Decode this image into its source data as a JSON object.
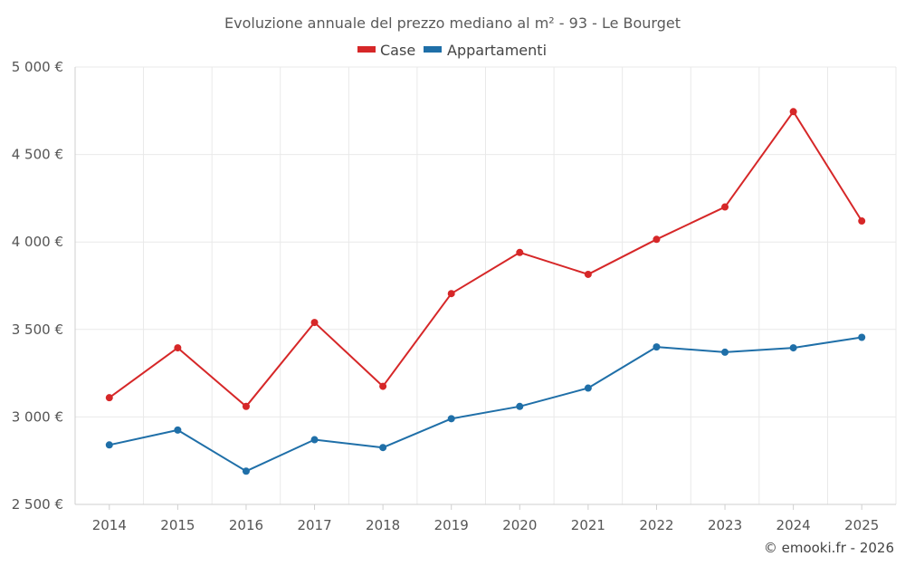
{
  "chart_data": {
    "type": "line",
    "title": "Evoluzione annuale del prezzo mediano al m² - 93 - Le Bourget",
    "categories": [
      "2014",
      "2015",
      "2016",
      "2017",
      "2018",
      "2019",
      "2020",
      "2021",
      "2022",
      "2023",
      "2024",
      "2025"
    ],
    "series": [
      {
        "name": "Case",
        "color": "#d62728",
        "values": [
          3110,
          3395,
          3060,
          3540,
          3175,
          3705,
          3940,
          3815,
          4015,
          4200,
          4745,
          4120
        ]
      },
      {
        "name": "Appartamenti",
        "color": "#1f6fa8",
        "values": [
          2840,
          2925,
          2690,
          2870,
          2825,
          2990,
          3060,
          3165,
          3400,
          3370,
          3395,
          3455
        ]
      }
    ],
    "ylim": [
      2500,
      5000
    ],
    "yticks": [
      2500,
      3000,
      3500,
      4000,
      4500,
      5000
    ],
    "ytick_labels": [
      "2 500 €",
      "3 000 €",
      "3 500 €",
      "4 000 €",
      "4 500 €",
      "5 000 €"
    ],
    "xlabel": "",
    "ylabel": "",
    "legend_position": "top-center",
    "grid": true
  },
  "credit": "© emooki.fr - 2026"
}
